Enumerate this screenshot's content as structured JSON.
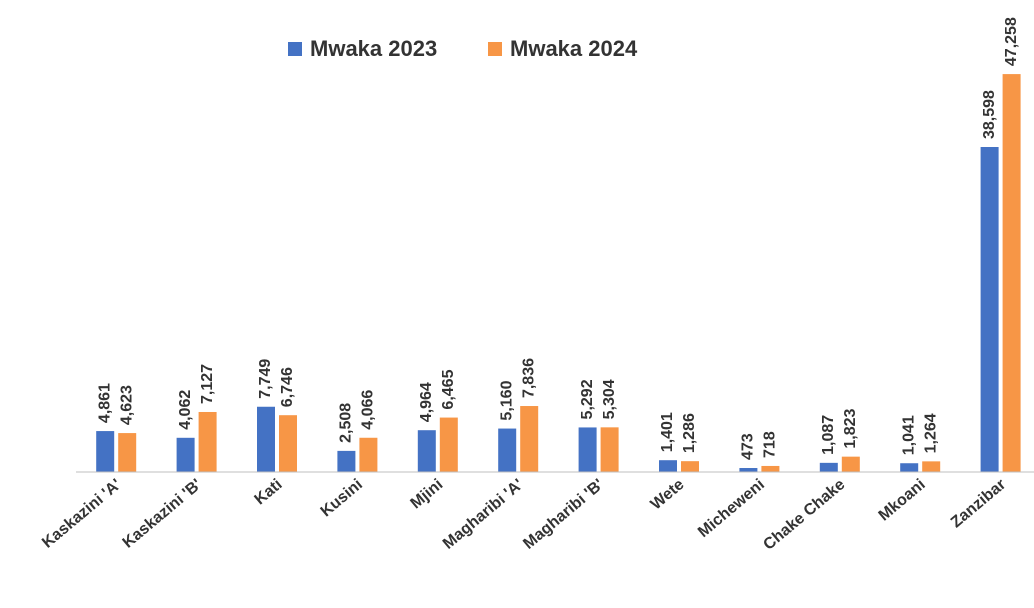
{
  "chart_data": {
    "type": "bar",
    "categories": [
      "Kaskazini 'A'",
      "Kaskazini 'B'",
      "Kati",
      "Kusini",
      "Mjini",
      "Magharibi 'A'",
      "Magharibi 'B'",
      "Wete",
      "Micheweni",
      "Chake Chake",
      "Mkoani",
      "Zanzibar"
    ],
    "series": [
      {
        "name": "Mwaka 2023",
        "color": "#4472c4",
        "values": [
          4861,
          4062,
          7749,
          2508,
          4964,
          5160,
          5292,
          1401,
          473,
          1087,
          1041,
          38598
        ],
        "value_labels": [
          "4,861",
          "4,062",
          "7,749",
          "2,508",
          "4,964",
          "5,160",
          "5,292",
          "1,401",
          "473",
          "1,087",
          "1,041",
          "38,598"
        ]
      },
      {
        "name": "Mwaka 2024",
        "color": "#f79646",
        "values": [
          4623,
          7127,
          6746,
          4066,
          6465,
          7836,
          5304,
          1286,
          718,
          1823,
          1264,
          47258
        ],
        "value_labels": [
          "4,623",
          "7,127",
          "6,746",
          "4,066",
          "6,465",
          "7,836",
          "5,304",
          "1,286",
          "718",
          "1,823",
          "1,264",
          "47,258"
        ]
      }
    ],
    "ylim": [
      0,
      50000
    ],
    "legend": "top"
  }
}
